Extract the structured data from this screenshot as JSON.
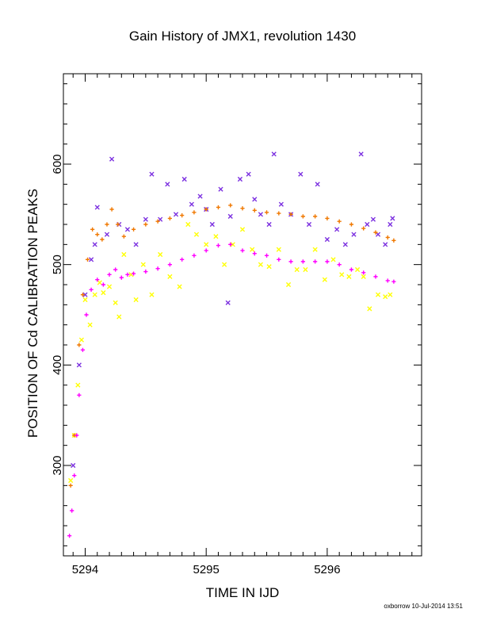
{
  "title": "Gain History of JMX1, revolution 1430",
  "footer": "oxborrow 10-Jul-2014 13:51",
  "chart_data": {
    "type": "scatter",
    "title": "Gain History of JMX1, revolution 1430",
    "xlabel": "TIME IN IJD",
    "ylabel": "POSITION OF Cd CALIBRATION PEAKS",
    "xlim": [
      5293.82,
      5296.78
    ],
    "ylim": [
      210,
      690
    ],
    "xticks": [
      5294,
      5295,
      5296
    ],
    "yticks": [
      300,
      400,
      500,
      600
    ],
    "grid": false,
    "series": [
      {
        "marker": "x",
        "color": "#ffff00",
        "points": [
          [
            5293.88,
            285
          ],
          [
            5293.91,
            330
          ],
          [
            5293.94,
            380
          ],
          [
            5293.97,
            425
          ],
          [
            5294.0,
            465
          ],
          [
            5294.04,
            440
          ],
          [
            5294.08,
            470
          ],
          [
            5294.12,
            482
          ],
          [
            5294.15,
            472
          ],
          [
            5294.2,
            478
          ],
          [
            5294.25,
            462
          ],
          [
            5294.28,
            448
          ],
          [
            5294.32,
            510
          ],
          [
            5294.38,
            490
          ],
          [
            5294.42,
            465
          ],
          [
            5294.48,
            500
          ],
          [
            5294.55,
            470
          ],
          [
            5294.62,
            510
          ],
          [
            5294.7,
            488
          ],
          [
            5294.78,
            478
          ],
          [
            5294.85,
            540
          ],
          [
            5294.92,
            530
          ],
          [
            5295.0,
            520
          ],
          [
            5295.08,
            528
          ],
          [
            5295.15,
            500
          ],
          [
            5295.22,
            520
          ],
          [
            5295.3,
            535
          ],
          [
            5295.38,
            515
          ],
          [
            5295.45,
            500
          ],
          [
            5295.52,
            498
          ],
          [
            5295.6,
            515
          ],
          [
            5295.68,
            480
          ],
          [
            5295.75,
            495
          ],
          [
            5295.82,
            495
          ],
          [
            5295.9,
            515
          ],
          [
            5295.98,
            485
          ],
          [
            5296.05,
            505
          ],
          [
            5296.12,
            490
          ],
          [
            5296.18,
            488
          ],
          [
            5296.25,
            495
          ],
          [
            5296.3,
            488
          ],
          [
            5296.35,
            456
          ],
          [
            5296.42,
            470
          ],
          [
            5296.48,
            468
          ],
          [
            5296.52,
            470
          ]
        ]
      },
      {
        "marker": "x",
        "color": "#7b2fe0",
        "points": [
          [
            5293.9,
            300
          ],
          [
            5293.95,
            400
          ],
          [
            5294.0,
            470
          ],
          [
            5294.05,
            505
          ],
          [
            5294.08,
            520
          ],
          [
            5294.1,
            557
          ],
          [
            5294.18,
            530
          ],
          [
            5294.22,
            605
          ],
          [
            5294.28,
            540
          ],
          [
            5294.35,
            535
          ],
          [
            5294.42,
            520
          ],
          [
            5294.5,
            545
          ],
          [
            5294.55,
            590
          ],
          [
            5294.62,
            545
          ],
          [
            5294.68,
            580
          ],
          [
            5294.75,
            550
          ],
          [
            5294.82,
            585
          ],
          [
            5294.88,
            560
          ],
          [
            5294.95,
            568
          ],
          [
            5295.0,
            555
          ],
          [
            5295.05,
            540
          ],
          [
            5295.12,
            575
          ],
          [
            5295.2,
            548
          ],
          [
            5295.28,
            585
          ],
          [
            5295.35,
            590
          ],
          [
            5295.4,
            565
          ],
          [
            5295.45,
            550
          ],
          [
            5295.52,
            540
          ],
          [
            5295.56,
            610
          ],
          [
            5295.62,
            560
          ],
          [
            5295.7,
            550
          ],
          [
            5295.78,
            590
          ],
          [
            5295.85,
            540
          ],
          [
            5295.92,
            580
          ],
          [
            5296.0,
            525
          ],
          [
            5296.08,
            535
          ],
          [
            5296.15,
            520
          ],
          [
            5296.22,
            530
          ],
          [
            5296.28,
            610
          ],
          [
            5296.33,
            540
          ],
          [
            5296.38,
            545
          ],
          [
            5296.42,
            530
          ],
          [
            5296.48,
            520
          ],
          [
            5296.52,
            540
          ],
          [
            5296.54,
            546
          ],
          [
            5295.18,
            462
          ]
        ]
      },
      {
        "marker": "+",
        "color": "#f07800",
        "points": [
          [
            5293.88,
            280
          ],
          [
            5293.91,
            330
          ],
          [
            5293.95,
            420
          ],
          [
            5293.98,
            470
          ],
          [
            5294.02,
            505
          ],
          [
            5294.06,
            535
          ],
          [
            5294.1,
            530
          ],
          [
            5294.14,
            525
          ],
          [
            5294.18,
            540
          ],
          [
            5294.22,
            555
          ],
          [
            5294.27,
            540
          ],
          [
            5294.32,
            528
          ],
          [
            5294.4,
            535
          ],
          [
            5294.5,
            540
          ],
          [
            5294.6,
            543
          ],
          [
            5294.7,
            546
          ],
          [
            5294.8,
            549
          ],
          [
            5294.9,
            552
          ],
          [
            5295.0,
            555
          ],
          [
            5295.1,
            557
          ],
          [
            5295.2,
            559
          ],
          [
            5295.3,
            556
          ],
          [
            5295.4,
            554
          ],
          [
            5295.5,
            552
          ],
          [
            5295.6,
            551
          ],
          [
            5295.7,
            550
          ],
          [
            5295.8,
            548
          ],
          [
            5295.9,
            548
          ],
          [
            5296.0,
            546
          ],
          [
            5296.1,
            543
          ],
          [
            5296.2,
            540
          ],
          [
            5296.3,
            536
          ],
          [
            5296.4,
            532
          ],
          [
            5296.5,
            527
          ],
          [
            5296.55,
            524
          ]
        ]
      },
      {
        "marker": "+",
        "color": "#ff00ff",
        "points": [
          [
            5293.87,
            230
          ],
          [
            5293.89,
            255
          ],
          [
            5293.91,
            290
          ],
          [
            5293.93,
            330
          ],
          [
            5293.95,
            370
          ],
          [
            5293.98,
            415
          ],
          [
            5294.01,
            450
          ],
          [
            5294.05,
            475
          ],
          [
            5294.1,
            485
          ],
          [
            5294.15,
            480
          ],
          [
            5294.2,
            490
          ],
          [
            5294.25,
            495
          ],
          [
            5294.3,
            487
          ],
          [
            5294.35,
            490
          ],
          [
            5294.4,
            491
          ],
          [
            5294.5,
            493
          ],
          [
            5294.6,
            496
          ],
          [
            5294.7,
            500
          ],
          [
            5294.8,
            505
          ],
          [
            5294.9,
            509
          ],
          [
            5295.0,
            514
          ],
          [
            5295.1,
            519
          ],
          [
            5295.2,
            520
          ],
          [
            5295.3,
            514
          ],
          [
            5295.4,
            511
          ],
          [
            5295.5,
            509
          ],
          [
            5295.6,
            505
          ],
          [
            5295.7,
            503
          ],
          [
            5295.8,
            503
          ],
          [
            5295.9,
            503
          ],
          [
            5296.0,
            503
          ],
          [
            5296.1,
            500
          ],
          [
            5296.2,
            495
          ],
          [
            5296.3,
            492
          ],
          [
            5296.4,
            488
          ],
          [
            5296.5,
            484
          ],
          [
            5296.55,
            483
          ]
        ]
      }
    ]
  }
}
